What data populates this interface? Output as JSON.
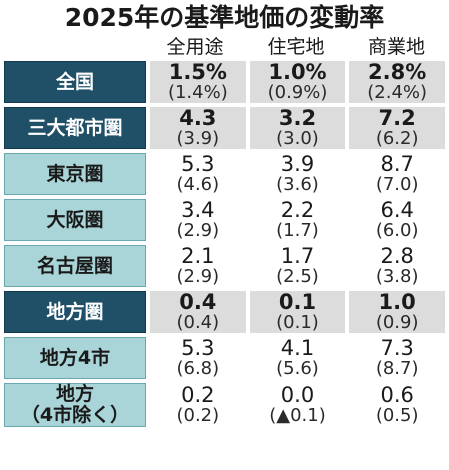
{
  "title": "2025年の基準地価の変動率",
  "columns": [
    "全用途",
    "住宅地",
    "商業地"
  ],
  "rows": [
    {
      "label": "全国",
      "style": "major",
      "values": [
        {
          "v": "1.5%",
          "p": "(1.4%)"
        },
        {
          "v": "1.0%",
          "p": "(0.9%)"
        },
        {
          "v": "2.8%",
          "p": "(2.4%)"
        }
      ]
    },
    {
      "label": "三大都市圏",
      "style": "major",
      "values": [
        {
          "v": "4.3",
          "p": "(3.9)"
        },
        {
          "v": "3.2",
          "p": "(3.0)"
        },
        {
          "v": "7.2",
          "p": "(6.2)"
        }
      ]
    },
    {
      "label": "東京圏",
      "style": "minor",
      "values": [
        {
          "v": "5.3",
          "p": "(4.6)"
        },
        {
          "v": "3.9",
          "p": "(3.6)"
        },
        {
          "v": "8.7",
          "p": "(7.0)"
        }
      ]
    },
    {
      "label": "大阪圏",
      "style": "minor",
      "values": [
        {
          "v": "3.4",
          "p": "(2.9)"
        },
        {
          "v": "2.2",
          "p": "(1.7)"
        },
        {
          "v": "6.4",
          "p": "(6.0)"
        }
      ]
    },
    {
      "label": "名古屋圏",
      "style": "minor",
      "values": [
        {
          "v": "2.1",
          "p": "(2.9)"
        },
        {
          "v": "1.7",
          "p": "(2.5)"
        },
        {
          "v": "2.8",
          "p": "(3.8)"
        }
      ]
    },
    {
      "label": "地方圏",
      "style": "major",
      "values": [
        {
          "v": "0.4",
          "p": "(0.4)"
        },
        {
          "v": "0.1",
          "p": "(0.1)"
        },
        {
          "v": "1.0",
          "p": "(0.9)"
        }
      ]
    },
    {
      "label": "地方4市",
      "style": "minor",
      "values": [
        {
          "v": "5.3",
          "p": "(6.8)"
        },
        {
          "v": "4.1",
          "p": "(5.6)"
        },
        {
          "v": "7.3",
          "p": "(8.7)"
        }
      ]
    },
    {
      "label": "地方",
      "label2": "（4市除く）",
      "style": "minor",
      "values": [
        {
          "v": "0.2",
          "p": "(0.2)"
        },
        {
          "v": "0.0",
          "p": "(▲0.1)"
        },
        {
          "v": "0.6",
          "p": "(0.5)"
        }
      ]
    }
  ],
  "colors": {
    "major_header": "#1f5068",
    "minor_header": "#a9d4d8",
    "shaded_cell": "#dcdcdc"
  }
}
